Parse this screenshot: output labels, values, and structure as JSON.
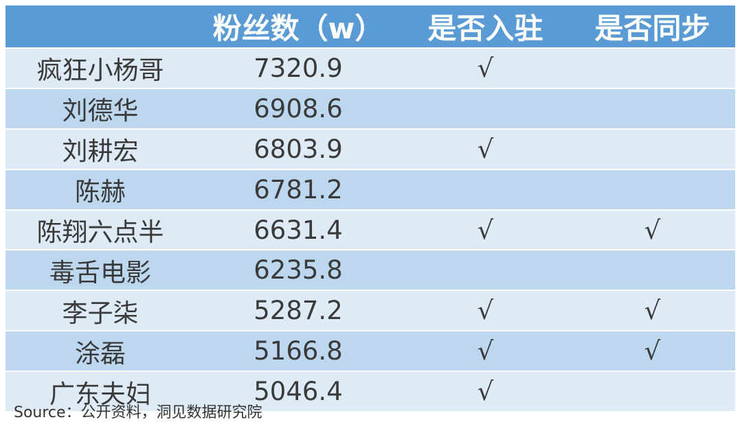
{
  "chart_data": {
    "type": "table",
    "columns": [
      "",
      "粉丝数（w）",
      "是否入驻",
      "是否同步"
    ],
    "rows": [
      {
        "name": "疯狂小杨哥",
        "fans": "7320.9",
        "joined": "√",
        "synced": ""
      },
      {
        "name": "刘德华",
        "fans": "6908.6",
        "joined": "",
        "synced": ""
      },
      {
        "name": "刘耕宏",
        "fans": "6803.9",
        "joined": "√",
        "synced": ""
      },
      {
        "name": "陈赫",
        "fans": "6781.2",
        "joined": "",
        "synced": ""
      },
      {
        "name": "陈翔六点半",
        "fans": "6631.4",
        "joined": "√",
        "synced": "√"
      },
      {
        "name": "毒舌电影",
        "fans": "6235.8",
        "joined": "",
        "synced": ""
      },
      {
        "name": "李子柒",
        "fans": "5287.2",
        "joined": "√",
        "synced": "√"
      },
      {
        "name": "涂磊",
        "fans": "5166.8",
        "joined": "√",
        "synced": "√"
      },
      {
        "name": "广东夫妇",
        "fans": "5046.4",
        "joined": "√",
        "synced": ""
      }
    ],
    "colors": {
      "header": "#5b9bd5",
      "row_light": "#deebf7",
      "row_dark": "#bdd7ee"
    }
  },
  "source": "Source：公开资料，洞见数据研究院"
}
